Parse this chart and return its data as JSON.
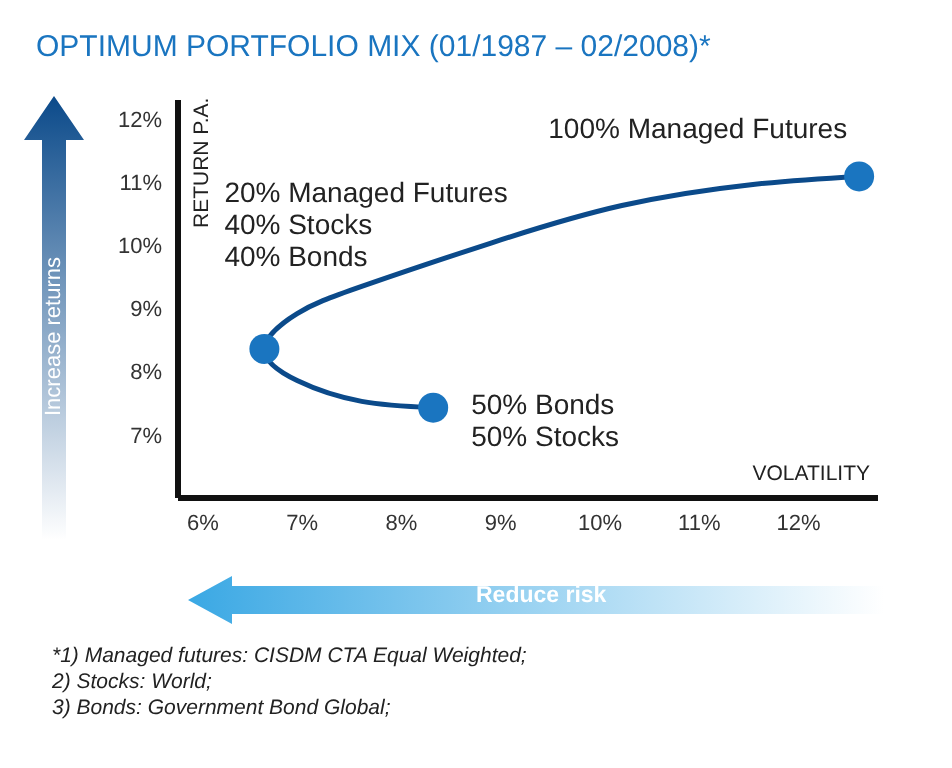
{
  "chart_data": {
    "type": "line",
    "title": "OPTIMUM PORTFOLIO MIX (01/1987 – 02/2008)*",
    "xlabel": "VOLATILITY",
    "ylabel": "RETURN P.A.",
    "xlim": [
      5.75,
      12.8
    ],
    "ylim": [
      6,
      12.3
    ],
    "xticks": [
      {
        "value": 6,
        "label": "6%"
      },
      {
        "value": 7,
        "label": "7%"
      },
      {
        "value": 8,
        "label": "8%"
      },
      {
        "value": 9,
        "label": "9%"
      },
      {
        "value": 10,
        "label": "10%"
      },
      {
        "value": 11,
        "label": "11%"
      },
      {
        "value": 12,
        "label": "12%"
      }
    ],
    "yticks": [
      {
        "value": 7,
        "label": "7%"
      },
      {
        "value": 8,
        "label": "8%"
      },
      {
        "value": 9,
        "label": "9%"
      },
      {
        "value": 10,
        "label": "10%"
      },
      {
        "value": 11,
        "label": "11%"
      },
      {
        "value": 12,
        "label": "12%"
      }
    ],
    "series": [
      {
        "color": "#0b4a8a",
        "marker": "none",
        "x": [
          8.32,
          7.6,
          6.95,
          6.62,
          6.95,
          7.6,
          8.91,
          10.22,
          11.52,
          12.61
        ],
        "values": [
          7.43,
          7.53,
          7.86,
          8.36,
          8.92,
          9.35,
          10.04,
          10.63,
          10.96,
          11.09
        ]
      },
      {
        "type": "scatter",
        "color": "#1a75c0",
        "marker": "circle",
        "x": [
          12.61,
          6.62,
          8.32
        ],
        "values": [
          11.09,
          8.36,
          7.43
        ]
      }
    ],
    "grid": false,
    "annotations": [
      {
        "text": "100% Managed Futures",
        "x": 12.61,
        "y": 11.09
      },
      {
        "text": "20% Managed Futures\n40% Stocks\n40% Bonds",
        "x": 6.62,
        "y": 8.36
      },
      {
        "text": "50% Bonds\n50% Stocks",
        "x": 8.32,
        "y": 7.43
      },
      "Increase returns",
      "Reduce risk",
      "*1) Managed futures: CISDM CTA Equal Weighted;\n2) Stocks: World;\n3) Bonds: Government Bond Global;"
    ]
  }
}
